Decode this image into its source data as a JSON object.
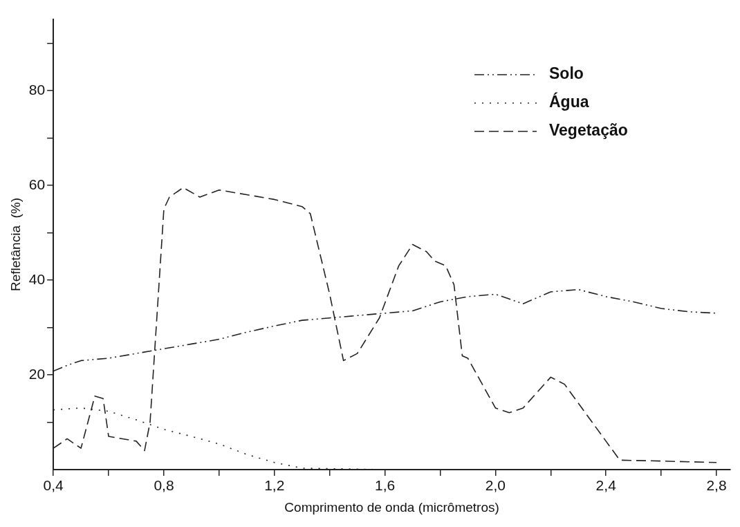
{
  "chart_data": {
    "type": "line",
    "xlabel": "Comprimento de onda (micrômetros)",
    "ylabel": "Refletância  (%)",
    "xlim": [
      0.4,
      2.85
    ],
    "ylim": [
      0,
      95
    ],
    "xticks": [
      {
        "value": 0.4,
        "label": "0,4"
      },
      {
        "value": 0.6,
        "label": null
      },
      {
        "value": 0.8,
        "label": "0,8"
      },
      {
        "value": 1.0,
        "label": null
      },
      {
        "value": 1.2,
        "label": "1,2"
      },
      {
        "value": 1.4,
        "label": null
      },
      {
        "value": 1.6,
        "label": "1,6"
      },
      {
        "value": 1.8,
        "label": null
      },
      {
        "value": 2.0,
        "label": "2,0"
      },
      {
        "value": 2.2,
        "label": null
      },
      {
        "value": 2.4,
        "label": "2,4"
      },
      {
        "value": 2.6,
        "label": null
      },
      {
        "value": 2.8,
        "label": "2,8"
      }
    ],
    "yticks": [
      {
        "value": 10,
        "label": null
      },
      20,
      {
        "value": 30,
        "label": null
      },
      40,
      {
        "value": 50,
        "label": null
      },
      60,
      {
        "value": 70,
        "label": null
      },
      80,
      {
        "value": 90,
        "label": null
      }
    ],
    "grid": false,
    "legend": "top right",
    "marker": "none",
    "series": [
      {
        "name": "Solo",
        "color": "#222222",
        "line_style": "dashdot",
        "x": [
          0.4,
          0.45,
          0.5,
          0.6,
          0.7,
          0.8,
          0.9,
          1.0,
          1.1,
          1.2,
          1.3,
          1.4,
          1.5,
          1.6,
          1.7,
          1.8,
          1.9,
          2.0,
          2.05,
          2.1,
          2.2,
          2.3,
          2.4,
          2.5,
          2.6,
          2.7,
          2.8
        ],
        "values": [
          20.8,
          22,
          23,
          23.5,
          24.5,
          25.5,
          26.5,
          27.5,
          29,
          30.3,
          31.5,
          32,
          32.5,
          33,
          33.5,
          35.4,
          36.5,
          37,
          36,
          35,
          37.5,
          38,
          36.5,
          35.4,
          34,
          33.3,
          33
        ]
      },
      {
        "name": "Água",
        "color": "#222222",
        "line_style": "dotted",
        "x": [
          0.4,
          0.5,
          0.6,
          0.7,
          0.8,
          0.9,
          1.0,
          1.1,
          1.2,
          1.3,
          1.6,
          2.0,
          2.4,
          2.8
        ],
        "values": [
          12.6,
          13,
          12.3,
          10.5,
          8.5,
          7,
          5.4,
          3.2,
          1.5,
          0.3,
          0,
          0,
          0,
          0
        ]
      },
      {
        "name": "Vegetação",
        "color": "#222222",
        "line_style": "dashed",
        "x": [
          0.4,
          0.45,
          0.5,
          0.55,
          0.58,
          0.6,
          0.7,
          0.73,
          0.75,
          0.8,
          0.82,
          0.87,
          0.93,
          1.0,
          1.1,
          1.2,
          1.3,
          1.33,
          1.4,
          1.45,
          1.5,
          1.58,
          1.65,
          1.7,
          1.75,
          1.78,
          1.82,
          1.85,
          1.88,
          1.9,
          2.0,
          2.05,
          2.1,
          2.2,
          2.25,
          2.3,
          2.4,
          2.45,
          2.6,
          2.8
        ],
        "values": [
          4.5,
          6.5,
          4.5,
          15.5,
          15,
          7,
          6,
          4,
          10,
          55,
          57.5,
          59.5,
          57.5,
          59,
          58,
          57,
          55.5,
          54,
          37,
          23,
          24.5,
          32,
          43,
          47.5,
          46,
          44,
          43,
          39,
          24,
          23.5,
          13,
          12,
          13,
          19.5,
          18,
          14,
          6,
          2,
          1.8,
          1.5
        ]
      }
    ]
  }
}
